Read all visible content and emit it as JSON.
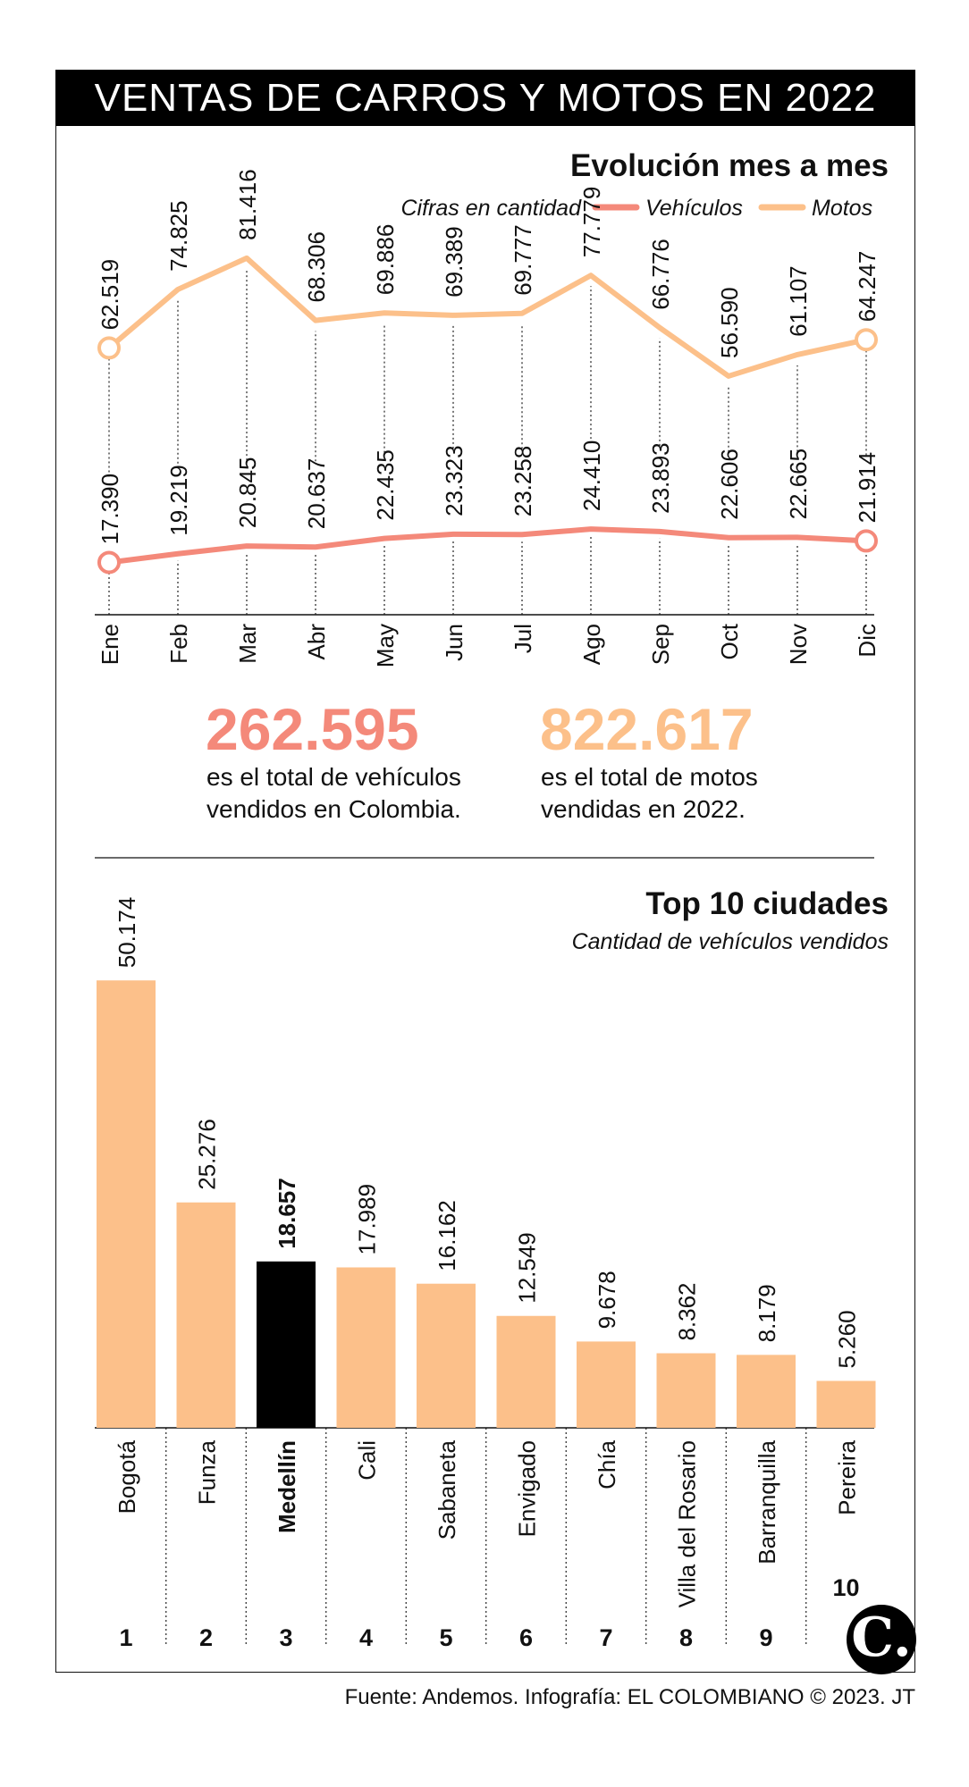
{
  "title": "VENTAS DE CARROS Y MOTOS EN 2022",
  "colors": {
    "vehiculos": "#F4897A",
    "motos": "#FCC08A",
    "highlight": "#000000"
  },
  "line_section": {
    "heading": "Evolución mes a mes",
    "units_note": "Cifras en cantidad",
    "legend": {
      "vehiculos": "Vehículos",
      "motos": "Motos"
    }
  },
  "totals": {
    "vehiculos": {
      "value": "262.595",
      "line1": "es el total de vehículos",
      "line2": "vendidos en Colombia."
    },
    "motos": {
      "value": "822.617",
      "line1": "es el total de motos",
      "line2": "vendidas en 2022."
    }
  },
  "bar_section": {
    "heading": "Top 10 ciudades",
    "subtitle": "Cantidad de vehículos vendidos",
    "highlight_index": 2
  },
  "source": "Fuente: Andemos. Infografía: EL COLOMBIANO © 2023. JT",
  "logo_glyph": "C.",
  "chart_data": [
    {
      "type": "line",
      "title": "Evolución mes a mes",
      "x": [
        "Ene",
        "Feb",
        "Mar",
        "Abr",
        "May",
        "Jun",
        "Jul",
        "Ago",
        "Sep",
        "Oct",
        "Nov",
        "Dic"
      ],
      "series": [
        {
          "name": "Vehículos",
          "values": [
            17390,
            19219,
            20845,
            20637,
            22435,
            23323,
            23258,
            24410,
            23893,
            22606,
            22665,
            21914
          ],
          "labels": [
            "17.390",
            "19.219",
            "20.845",
            "20.637",
            "22.435",
            "23.323",
            "23.258",
            "24.410",
            "23.893",
            "22.606",
            "22.665",
            "21.914"
          ]
        },
        {
          "name": "Motos",
          "values": [
            62519,
            74825,
            81416,
            68306,
            69886,
            69389,
            69777,
            77779,
            66776,
            56590,
            61107,
            64247
          ],
          "labels": [
            "62.519",
            "74.825",
            "81.416",
            "68.306",
            "69.886",
            "69.389",
            "69.777",
            "77.779",
            "66.776",
            "56.590",
            "61.107",
            "64.247"
          ]
        }
      ],
      "legend_position": "top-right",
      "grid": false
    },
    {
      "type": "bar",
      "title": "Top 10 ciudades",
      "categories": [
        "Bogotá",
        "Funza",
        "Medellín",
        "Cali",
        "Sabaneta",
        "Envigado",
        "Chía",
        "Villa del Rosario",
        "Barranquilla",
        "Pereira"
      ],
      "ranks": [
        "1",
        "2",
        "3",
        "4",
        "5",
        "6",
        "7",
        "8",
        "9",
        "10"
      ],
      "values": [
        50174,
        25276,
        18657,
        17989,
        16162,
        12549,
        9678,
        8362,
        8179,
        5260
      ],
      "labels": [
        "50.174",
        "25.276",
        "18.657",
        "17.989",
        "16.162",
        "12.549",
        "9.678",
        "8.362",
        "8.179",
        "5.260"
      ],
      "ylim": [
        0,
        50174
      ]
    }
  ]
}
